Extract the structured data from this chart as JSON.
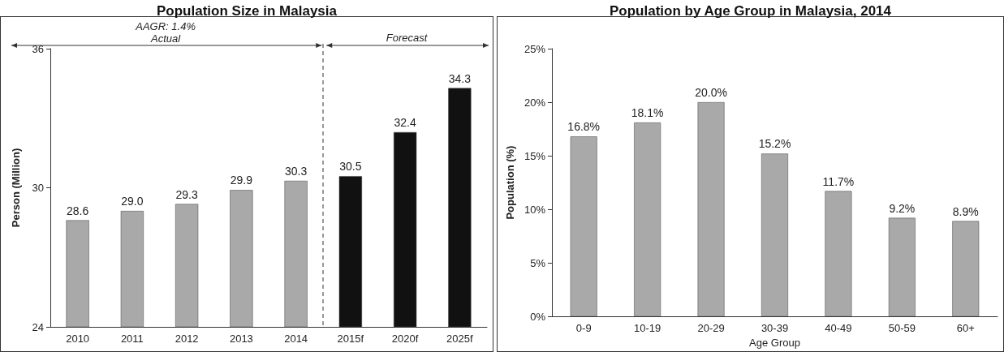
{
  "chart_data": [
    {
      "type": "bar",
      "title": "Population Size in Malaysia",
      "ylabel": "Person (Million)",
      "categories": [
        "2010",
        "2011",
        "2012",
        "2013",
        "2014",
        "2015f",
        "2020f",
        "2025f"
      ],
      "values": [
        28.6,
        29.0,
        29.3,
        29.9,
        30.3,
        30.5,
        32.4,
        34.3
      ],
      "value_labels": [
        "28.6",
        "29.0",
        "29.3",
        "29.9",
        "30.3",
        "30.5",
        "32.4",
        "34.3"
      ],
      "colors": [
        "#a9a9a9",
        "#a9a9a9",
        "#a9a9a9",
        "#a9a9a9",
        "#a9a9a9",
        "#111111",
        "#111111",
        "#111111"
      ],
      "ylim": [
        24,
        36
      ],
      "yticks": [
        24,
        30,
        36
      ],
      "grid": false,
      "annotations": [
        "AAGR: 1.4%",
        "Actual",
        "Forecast"
      ]
    },
    {
      "type": "bar",
      "title": "Population by Age Group in Malaysia, 2014",
      "xlabel": "Age Group",
      "ylabel": "Population (%)",
      "categories": [
        "0-9",
        "10-19",
        "20-29",
        "30-39",
        "40-49",
        "50-59",
        "60+"
      ],
      "values": [
        16.8,
        18.1,
        20.0,
        15.2,
        11.7,
        9.2,
        8.9
      ],
      "value_labels": [
        "16.8%",
        "18.1%",
        "20.0%",
        "15.2%",
        "11.7%",
        "9.2%",
        "8.9%"
      ],
      "color": "#a9a9a9",
      "ylim": [
        0,
        25
      ],
      "yticks": [
        {
          "value": 0,
          "label": "0%"
        },
        {
          "value": 5,
          "label": "5%"
        },
        {
          "value": 10,
          "label": "10%"
        },
        {
          "value": 15,
          "label": "15%"
        },
        {
          "value": 20,
          "label": "20%"
        },
        {
          "value": 25,
          "label": "25%"
        }
      ],
      "grid": false
    }
  ]
}
